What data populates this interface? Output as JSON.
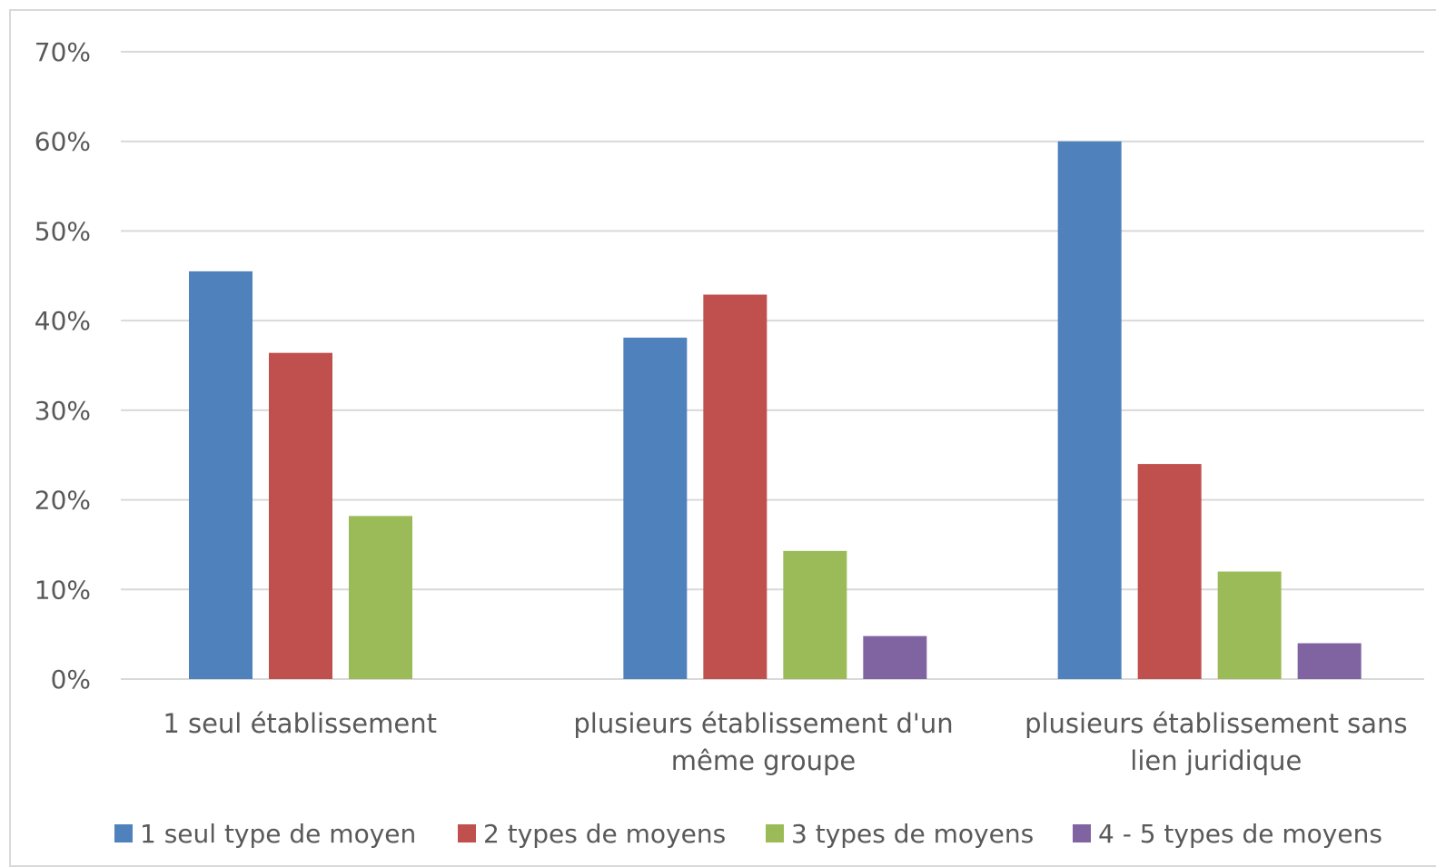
{
  "chart_data": {
    "type": "bar",
    "title": "",
    "xlabel": "",
    "ylabel": "",
    "ylim": [
      0,
      0.7
    ],
    "yticks": [
      0,
      0.1,
      0.2,
      0.3,
      0.4,
      0.5,
      0.6,
      0.7
    ],
    "ytick_labels": [
      "0%",
      "10%",
      "20%",
      "30%",
      "40%",
      "50%",
      "60%",
      "70%"
    ],
    "categories": [
      [
        "1 seul établissement"
      ],
      [
        "plusieurs établissement d'un",
        "même groupe"
      ],
      [
        "plusieurs établissement sans",
        "lien juridique"
      ]
    ],
    "series": [
      {
        "name": "1 seul type de moyen",
        "color": "#4f81bd",
        "values": [
          0.455,
          0.381,
          0.6
        ]
      },
      {
        "name": "2 types de moyens",
        "color": "#c0504d",
        "values": [
          0.364,
          0.429,
          0.24
        ]
      },
      {
        "name": "3 types de moyens",
        "color": "#9bbb59",
        "values": [
          0.182,
          0.143,
          0.12
        ]
      },
      {
        "name": "4 - 5 types de moyens",
        "color": "#8064a2",
        "values": [
          0.0,
          0.048,
          0.04
        ]
      }
    ],
    "grid": true,
    "legend_position": "bottom"
  }
}
